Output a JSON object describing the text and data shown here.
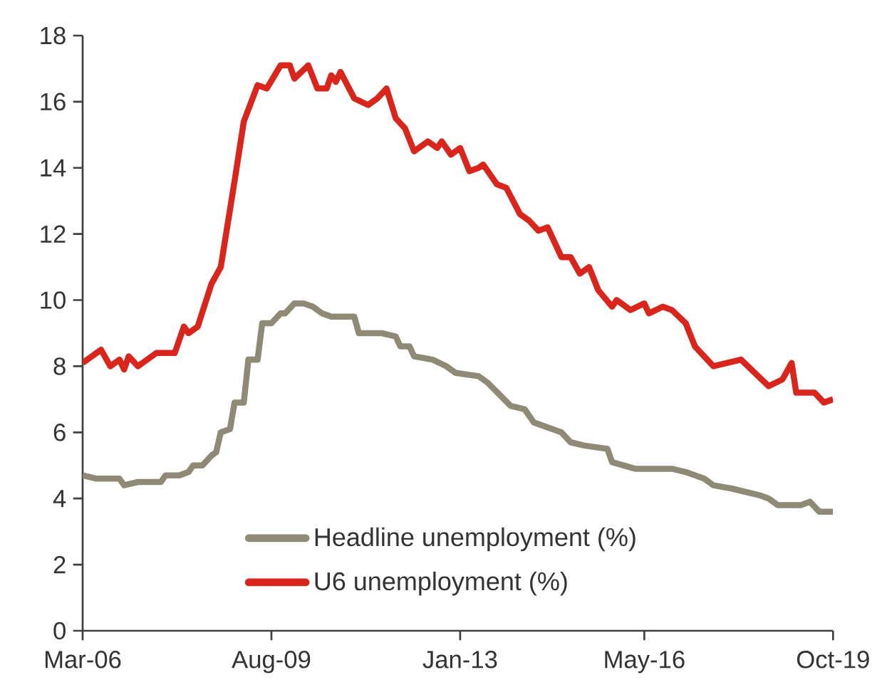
{
  "chart_data": {
    "type": "line",
    "xlim": [
      "2006-03",
      "2019-10"
    ],
    "xticks": [
      {
        "value": "2006-03",
        "label": "Mar-06"
      },
      {
        "value": "2009-08",
        "label": "Aug-09"
      },
      {
        "value": "2013-01",
        "label": "Jan-13"
      },
      {
        "value": "2016-05",
        "label": "May-16"
      },
      {
        "value": "2019-10",
        "label": "Oct-19"
      }
    ],
    "ylim": [
      0,
      18
    ],
    "yticks": [
      0,
      2,
      4,
      6,
      8,
      10,
      12,
      14,
      16,
      18
    ],
    "grid": false,
    "legend": "bottom",
    "marker": "none",
    "line_style": "solid",
    "series": [
      {
        "name": "Headline unemployment (%)",
        "color": "#8f8a75",
        "x": [
          "2006-03",
          "2006-06",
          "2006-11",
          "2006-12",
          "2007-03",
          "2007-08",
          "2007-09",
          "2007-12",
          "2008-02",
          "2008-03",
          "2008-05",
          "2008-07",
          "2008-08",
          "2008-09",
          "2008-11",
          "2008-12",
          "2009-02",
          "2009-03",
          "2009-05",
          "2009-06",
          "2009-08",
          "2009-10",
          "2009-11",
          "2010-01",
          "2010-03",
          "2010-05",
          "2010-07",
          "2010-09",
          "2011-02",
          "2011-03",
          "2011-08",
          "2011-11",
          "2011-12",
          "2012-02",
          "2012-03",
          "2012-07",
          "2012-10",
          "2012-12",
          "2013-05",
          "2013-07",
          "2013-12",
          "2014-03",
          "2014-05",
          "2014-07",
          "2014-11",
          "2015-01",
          "2015-04",
          "2015-09",
          "2015-10",
          "2016-03",
          "2016-11",
          "2017-02",
          "2017-06",
          "2017-08",
          "2017-12",
          "2018-06",
          "2018-08",
          "2018-10",
          "2019-03",
          "2019-05",
          "2019-07",
          "2019-10"
        ],
        "values": [
          4.7,
          4.6,
          4.6,
          4.4,
          4.5,
          4.5,
          4.7,
          4.7,
          4.8,
          5.0,
          5.0,
          5.3,
          5.4,
          6.0,
          6.1,
          6.9,
          6.9,
          8.2,
          8.2,
          9.3,
          9.3,
          9.6,
          9.6,
          9.9,
          9.9,
          9.8,
          9.6,
          9.5,
          9.5,
          9.0,
          9.0,
          8.9,
          8.6,
          8.6,
          8.3,
          8.2,
          8.0,
          7.8,
          7.7,
          7.5,
          6.8,
          6.7,
          6.3,
          6.2,
          6.0,
          5.7,
          5.6,
          5.5,
          5.1,
          4.9,
          4.9,
          4.8,
          4.6,
          4.4,
          4.3,
          4.1,
          4.0,
          3.8,
          3.8,
          3.9,
          3.6,
          3.6
        ]
      },
      {
        "name": "U6 unemployment (%)",
        "color": "#d9261c",
        "x": [
          "2006-03",
          "2006-07",
          "2006-09",
          "2006-11",
          "2006-12",
          "2007-01",
          "2007-03",
          "2007-07",
          "2007-11",
          "2008-01",
          "2008-02",
          "2008-04",
          "2008-07",
          "2008-09",
          "2008-12",
          "2009-02",
          "2009-05",
          "2009-07",
          "2009-10",
          "2009-12",
          "2010-01",
          "2010-04",
          "2010-06",
          "2010-08",
          "2010-09",
          "2010-10",
          "2010-11",
          "2011-02",
          "2011-05",
          "2011-07",
          "2011-09",
          "2011-11",
          "2012-01",
          "2012-03",
          "2012-06",
          "2012-08",
          "2012-09",
          "2012-11",
          "2013-01",
          "2013-03",
          "2013-05",
          "2013-06",
          "2013-09",
          "2013-11",
          "2014-02",
          "2014-04",
          "2014-06",
          "2014-08",
          "2014-11",
          "2015-01",
          "2015-03",
          "2015-05",
          "2015-07",
          "2015-10",
          "2015-11",
          "2016-02",
          "2016-05",
          "2016-06",
          "2016-09",
          "2016-11",
          "2017-02",
          "2017-04",
          "2017-08",
          "2018-02",
          "2018-08",
          "2018-11",
          "2019-01",
          "2019-02",
          "2019-06",
          "2019-08",
          "2019-10"
        ],
        "values": [
          8.1,
          8.5,
          8.0,
          8.2,
          7.9,
          8.3,
          8.0,
          8.4,
          8.4,
          9.2,
          9.0,
          9.2,
          10.5,
          11.0,
          13.6,
          15.4,
          16.5,
          16.4,
          17.1,
          17.1,
          16.7,
          17.1,
          16.4,
          16.4,
          16.8,
          16.6,
          16.9,
          16.1,
          15.9,
          16.1,
          16.4,
          15.5,
          15.2,
          14.5,
          14.8,
          14.6,
          14.8,
          14.4,
          14.6,
          13.9,
          14.0,
          14.1,
          13.5,
          13.4,
          12.6,
          12.4,
          12.1,
          12.2,
          11.3,
          11.3,
          10.8,
          11.0,
          10.3,
          9.8,
          10.0,
          9.7,
          9.9,
          9.6,
          9.8,
          9.7,
          9.3,
          8.6,
          8.0,
          8.2,
          7.4,
          7.6,
          8.1,
          7.2,
          7.2,
          6.9,
          7.0
        ]
      }
    ]
  }
}
